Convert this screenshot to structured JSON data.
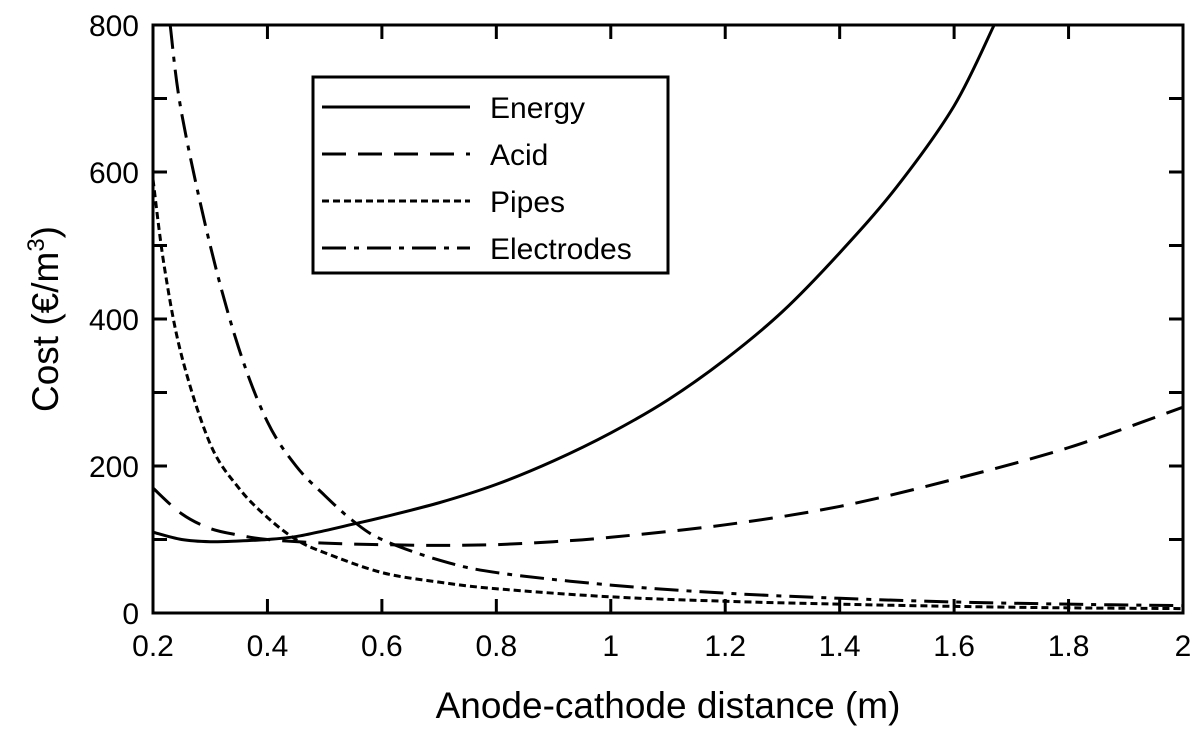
{
  "chart_data": {
    "type": "line",
    "title": "",
    "xlabel": "Anode-cathode distance (m)",
    "ylabel_main": "Cost (€/m",
    "ylabel_sup": "3",
    "ylabel_close": ")",
    "xlim": [
      0.2,
      2.0
    ],
    "ylim": [
      0,
      800
    ],
    "xticks": [
      0.2,
      0.4,
      0.6,
      0.8,
      1.0,
      1.2,
      1.4,
      1.6,
      1.8,
      2.0
    ],
    "xtick_labels": [
      "0.2",
      "0.4",
      "0.6",
      "0.8",
      "1",
      "1.2",
      "1.4",
      "1.6",
      "1.8",
      "2"
    ],
    "yticks": [
      0,
      200,
      400,
      600,
      800
    ],
    "ytick_labels": [
      "0",
      "200",
      "400",
      "600",
      "800"
    ],
    "grid": false,
    "legend_position": "top-center",
    "series": [
      {
        "name": "Energy",
        "style": "solid",
        "x": [
          0.2,
          0.25,
          0.3,
          0.35,
          0.4,
          0.45,
          0.5,
          0.55,
          0.6,
          0.7,
          0.8,
          0.9,
          1.0,
          1.1,
          1.2,
          1.3,
          1.4,
          1.5,
          1.6,
          1.67
        ],
        "y": [
          110,
          100,
          97,
          98,
          100,
          104,
          112,
          121,
          130,
          150,
          175,
          207,
          245,
          290,
          345,
          410,
          490,
          580,
          690,
          800
        ]
      },
      {
        "name": "Acid",
        "style": "dashed",
        "x": [
          0.2,
          0.25,
          0.3,
          0.35,
          0.4,
          0.5,
          0.6,
          0.7,
          0.8,
          0.9,
          1.0,
          1.2,
          1.4,
          1.6,
          1.8,
          2.0
        ],
        "y": [
          170,
          135,
          115,
          106,
          100,
          95,
          93,
          92,
          93,
          97,
          103,
          120,
          145,
          182,
          225,
          280
        ]
      },
      {
        "name": "Pipes",
        "style": "dotted",
        "x": [
          0.2,
          0.22,
          0.25,
          0.3,
          0.35,
          0.4,
          0.45,
          0.5,
          0.6,
          0.7,
          0.8,
          1.0,
          1.2,
          1.4,
          1.6,
          1.8,
          2.0
        ],
        "y": [
          590,
          470,
          350,
          230,
          170,
          130,
          100,
          82,
          55,
          42,
          33,
          22,
          16,
          12,
          9,
          7,
          6
        ]
      },
      {
        "name": "Electrodes",
        "style": "dashdot",
        "x": [
          0.23,
          0.25,
          0.3,
          0.35,
          0.4,
          0.45,
          0.5,
          0.55,
          0.6,
          0.7,
          0.8,
          1.0,
          1.2,
          1.4,
          1.6,
          1.8,
          2.0
        ],
        "y": [
          800,
          680,
          500,
          360,
          260,
          200,
          160,
          125,
          100,
          72,
          55,
          38,
          27,
          20,
          15,
          12,
          10
        ]
      }
    ]
  },
  "colors": {
    "line": "#000000",
    "background": "#ffffff"
  }
}
